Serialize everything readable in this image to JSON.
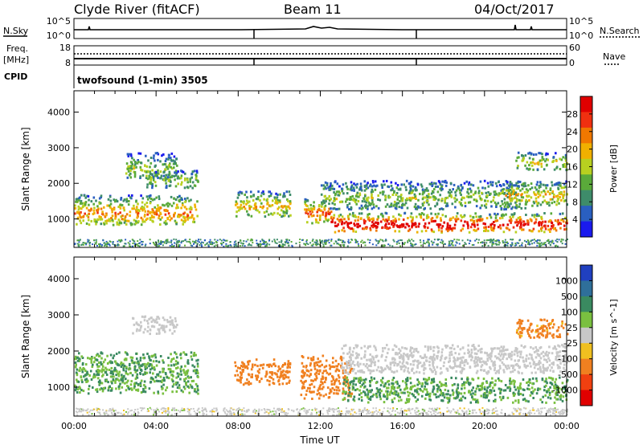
{
  "header": {
    "site": "Clyde River (fitACF)",
    "beam": "Beam 11",
    "date": "04/Oct/2017"
  },
  "sky_panel": {
    "left_label": "N.Sky",
    "right_label": "N.Search",
    "left_ticks": [
      "10^5",
      "10^0"
    ],
    "right_ticks": [
      "10^5",
      "10^0"
    ]
  },
  "freq_panel": {
    "left_label_1": "Freq.",
    "left_label_2": "[MHz]",
    "right_label": "Nave",
    "left_ticks": [
      "18",
      "8"
    ],
    "right_ticks": [
      "60",
      "0"
    ]
  },
  "cpid": {
    "label": "CPID",
    "program": "twofsound (1-min) 3505"
  },
  "colors": {
    "power_scale": [
      "#1a1aee",
      "#2a5fc0",
      "#3e8c6a",
      "#5aaa3a",
      "#b8d020",
      "#f0b000",
      "#f07800",
      "#f03010",
      "#e00000"
    ],
    "velocity_scale": [
      "#2040c0",
      "#2f6f9a",
      "#3a8a60",
      "#7ac040",
      "#c8c8c8",
      "#f0c020",
      "#f08020",
      "#f04010",
      "#e00000"
    ]
  },
  "chart_data": [
    {
      "type": "heatmap",
      "name_text": "Power",
      "ylabel": "Slant Range [km]",
      "yticks": [
        "1000",
        "2000",
        "3000",
        "4000"
      ],
      "ylim": [
        200,
        4600
      ],
      "xlim": [
        0,
        24
      ],
      "colorbar": {
        "label": "Power [dB]",
        "range": [
          0,
          32
        ],
        "ticks": [
          "4",
          "8",
          "12",
          "16",
          "20",
          "24",
          "28"
        ]
      },
      "bands": [
        {
          "x0": 0.0,
          "x1": 6.0,
          "range_km": [
            850,
            1700
          ],
          "value": 16
        },
        {
          "x0": 2.5,
          "x1": 5.0,
          "range_km": [
            2100,
            2900
          ],
          "value": 10
        },
        {
          "x0": 3.5,
          "x1": 6.0,
          "range_km": [
            1900,
            2400
          ],
          "value": 10
        },
        {
          "x0": 7.8,
          "x1": 10.5,
          "range_km": [
            1100,
            1800
          ],
          "value": 14
        },
        {
          "x0": 11.2,
          "x1": 12.5,
          "range_km": [
            900,
            1600
          ],
          "value": 18
        },
        {
          "x0": 12.5,
          "x1": 18.5,
          "range_km": [
            650,
            1200
          ],
          "value": 24
        },
        {
          "x0": 12.0,
          "x1": 22.0,
          "range_km": [
            1300,
            2100
          ],
          "value": 10
        },
        {
          "x0": 18.5,
          "x1": 24.0,
          "range_km": [
            650,
            1200
          ],
          "value": 22
        },
        {
          "x0": 21.0,
          "x1": 24.0,
          "range_km": [
            1400,
            2100
          ],
          "value": 14
        },
        {
          "x0": 21.5,
          "x1": 24.0,
          "range_km": [
            2400,
            2900
          ],
          "value": 12
        }
      ]
    },
    {
      "type": "heatmap",
      "name_text": "Velocity",
      "ylabel": "Slant Range [km]",
      "yticks": [
        "1000",
        "2000",
        "3000",
        "4000"
      ],
      "ylim": [
        200,
        4600
      ],
      "xlim": [
        0,
        24
      ],
      "xlabel": "Time UT",
      "xticks": [
        "00:00",
        "04:00",
        "08:00",
        "12:00",
        "16:00",
        "20:00",
        "00:00"
      ],
      "colorbar": {
        "label": "Velocity [m s^-1]",
        "ticks": [
          "1000",
          "500",
          "100",
          "25",
          "-25",
          "-100",
          "-500",
          "-1000"
        ]
      },
      "bands": [
        {
          "x0": 0.0,
          "x1": 6.0,
          "range_km": [
            850,
            2000
          ],
          "value": 100
        },
        {
          "x0": 2.8,
          "x1": 5.0,
          "range_km": [
            2500,
            3000
          ],
          "value": 0
        },
        {
          "x0": 7.8,
          "x1": 10.5,
          "range_km": [
            1100,
            1800
          ],
          "value": -300
        },
        {
          "x0": 11.0,
          "x1": 13.5,
          "range_km": [
            700,
            1900
          ],
          "value": -300
        },
        {
          "x0": 13.0,
          "x1": 24.0,
          "range_km": [
            600,
            1300
          ],
          "value": 100
        },
        {
          "x0": 13.0,
          "x1": 24.0,
          "range_km": [
            1400,
            2200
          ],
          "value": 0
        },
        {
          "x0": 21.5,
          "x1": 24.0,
          "range_km": [
            2400,
            2900
          ],
          "value": -150
        }
      ]
    }
  ]
}
